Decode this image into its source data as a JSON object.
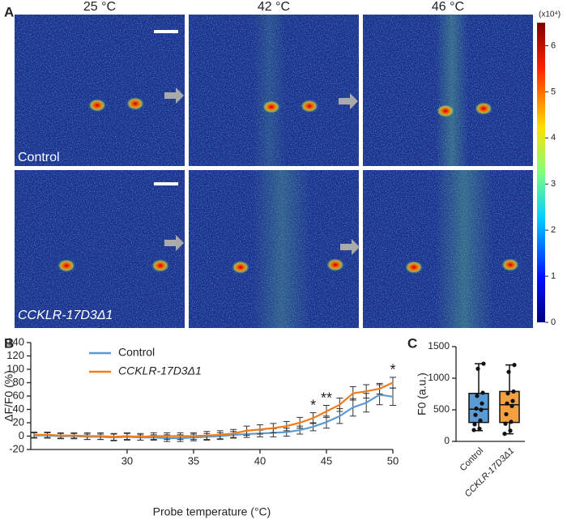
{
  "panel_a": {
    "label": "A",
    "column_titles": [
      "25 °C",
      "42 °C",
      "46 °C"
    ],
    "row_labels": [
      "Control",
      "CCKLR-17D3Δ1"
    ],
    "colorbar": {
      "label": "(x10⁴)",
      "lim": [
        0,
        6.5
      ],
      "ticks": [
        0,
        1,
        2,
        3,
        4,
        5,
        6
      ]
    }
  },
  "chart_data": [
    {
      "type": "line",
      "label": "B",
      "xlabel": "Probe temperature (°C)",
      "ylabel": "ΔF/F0 (%)",
      "x": [
        23,
        24,
        25,
        26,
        27,
        28,
        29,
        30,
        31,
        32,
        33,
        34,
        35,
        36,
        37,
        38,
        39,
        40,
        41,
        42,
        43,
        44,
        45,
        46,
        47,
        48,
        49,
        50
      ],
      "xlim": [
        22.75,
        50
      ],
      "xticks": [
        30,
        35,
        40,
        45,
        50
      ],
      "ylim": [
        -20,
        140
      ],
      "yticks": [
        -20,
        0,
        20,
        40,
        60,
        80,
        100,
        120,
        140
      ],
      "series": [
        {
          "name": "Control",
          "color": "#5b9bd5",
          "values": [
            1,
            1,
            0,
            0,
            -1,
            -1,
            -2,
            -1,
            -2,
            -2,
            -3,
            -3,
            -2,
            -1,
            0,
            2,
            3,
            4,
            5,
            6,
            9,
            14,
            21,
            30,
            43,
            50,
            62,
            59
          ],
          "errors": [
            4,
            4,
            4,
            4,
            4,
            4,
            5,
            5,
            4,
            4,
            5,
            5,
            5,
            5,
            5,
            5,
            5,
            5,
            6,
            6,
            6,
            6,
            9,
            11,
            13,
            14,
            15,
            13
          ]
        },
        {
          "name": "CCKLR-17D3Δ1",
          "color": "#f07d1a",
          "values": [
            2,
            2,
            1,
            1,
            0,
            0,
            -1,
            0,
            -1,
            0,
            0,
            0,
            0,
            1,
            2,
            4,
            8,
            10,
            12,
            15,
            20,
            27,
            37,
            47,
            64,
            67,
            71,
            80
          ],
          "errors": [
            4,
            4,
            4,
            4,
            5,
            5,
            5,
            5,
            5,
            5,
            5,
            5,
            5,
            6,
            6,
            6,
            7,
            7,
            7,
            7,
            8,
            8,
            9,
            10,
            10,
            10,
            8,
            8
          ]
        }
      ],
      "annotations": [
        {
          "x": 44,
          "text": "*"
        },
        {
          "x": 45,
          "text": "**"
        },
        {
          "x": 50,
          "text": "*"
        }
      ]
    },
    {
      "type": "box",
      "label": "C",
      "ylabel": "F0 (a.u.)",
      "categories": [
        "Control",
        "CCKLR-17D3Δ1"
      ],
      "ylim": [
        0,
        1500
      ],
      "yticks": [
        0,
        500,
        1000,
        1500
      ],
      "boxes": [
        {
          "color": "#5b9bd5",
          "min": 170,
          "q1": 300,
          "median": 510,
          "q3": 760,
          "max": 1230,
          "points": [
            180,
            200,
            270,
            330,
            420,
            500,
            520,
            600,
            720,
            770,
            1150,
            1230
          ]
        },
        {
          "color": "#f5a040",
          "min": 120,
          "q1": 300,
          "median": 580,
          "q3": 790,
          "max": 1210,
          "points": [
            120,
            170,
            280,
            310,
            430,
            560,
            600,
            640,
            760,
            790,
            1100,
            1210
          ]
        }
      ]
    }
  ]
}
